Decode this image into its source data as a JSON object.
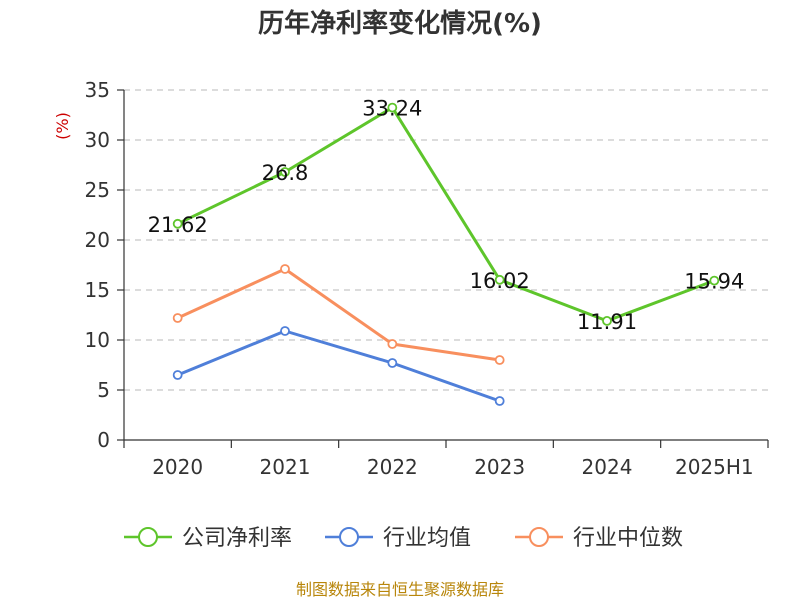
{
  "chart_data": {
    "type": "line",
    "title": "历年净利率变化情况(%)",
    "y_unit_label": "(%)",
    "categories": [
      "2020",
      "2021",
      "2022",
      "2023",
      "2024",
      "2025H1"
    ],
    "ylim": [
      0,
      35
    ],
    "yticks": [
      "0",
      "5",
      "10",
      "15",
      "20",
      "25",
      "30",
      "35"
    ],
    "grid": true,
    "legend_position": "bottom",
    "series": [
      {
        "name": "公司净利率",
        "color": "#5ec52b",
        "values": [
          21.62,
          26.8,
          33.24,
          16.02,
          11.91,
          15.94
        ],
        "labels": [
          "21.62",
          "26.8",
          "33.24",
          "16.02",
          "11.91",
          "15.94"
        ]
      },
      {
        "name": "行业均值",
        "color": "#4f7fd9",
        "values": [
          6.5,
          10.9,
          7.7,
          3.9,
          null,
          null
        ]
      },
      {
        "name": "行业中位数",
        "color": "#f88f5e",
        "values": [
          12.2,
          17.1,
          9.6,
          8.0,
          null,
          null
        ]
      }
    ]
  },
  "source_text": "制图数据来自恒生聚源数据库"
}
